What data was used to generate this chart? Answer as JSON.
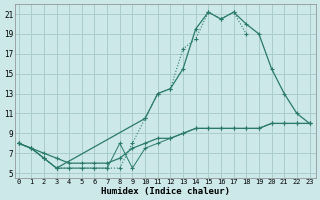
{
  "background_color": "#cce8e8",
  "grid_color": "#aacccc",
  "line_color": "#2a7a6a",
  "xlim": [
    -0.3,
    23.5
  ],
  "ylim": [
    4.5,
    22
  ],
  "xticks": [
    0,
    1,
    2,
    3,
    4,
    5,
    6,
    7,
    8,
    9,
    10,
    11,
    12,
    13,
    14,
    15,
    16,
    17,
    18,
    19,
    20,
    21,
    22,
    23
  ],
  "yticks": [
    5,
    7,
    9,
    11,
    13,
    15,
    17,
    19,
    21
  ],
  "xlabel": "Humidex (Indice chaleur)",
  "line1_x": [
    0,
    1,
    2,
    3,
    4,
    5,
    6,
    7,
    8,
    9,
    10,
    11,
    12,
    13,
    14,
    15,
    16,
    17,
    18
  ],
  "line1_y": [
    8.0,
    7.5,
    6.5,
    5.5,
    5.5,
    5.5,
    5.5,
    5.5,
    5.5,
    8.0,
    10.5,
    13.0,
    13.5,
    17.5,
    18.5,
    21.2,
    20.5,
    21.2,
    19.0
  ],
  "line2_x": [
    0,
    1,
    2,
    3,
    10,
    11,
    12,
    13,
    14,
    15,
    16,
    17,
    18,
    19,
    20,
    21,
    22,
    23
  ],
  "line2_y": [
    8.0,
    7.5,
    6.5,
    5.5,
    10.5,
    13.0,
    13.5,
    15.5,
    19.5,
    21.2,
    20.5,
    21.2,
    20.0,
    19.0,
    15.5,
    13.0,
    11.0,
    10.0
  ],
  "line3_x": [
    0,
    1,
    2,
    3,
    4,
    5,
    6,
    7,
    8,
    9,
    10,
    11,
    12,
    13,
    14,
    15,
    16,
    17,
    18,
    19,
    20,
    21,
    22,
    23
  ],
  "line3_y": [
    8.0,
    7.5,
    7.0,
    6.5,
    6.0,
    6.0,
    6.0,
    6.0,
    6.5,
    7.5,
    8.0,
    8.5,
    8.5,
    9.0,
    9.5,
    9.5,
    9.5,
    9.5,
    9.5,
    9.5,
    10.0,
    10.0,
    10.0,
    10.0
  ],
  "line4_x": [
    0,
    1,
    2,
    3,
    4,
    5,
    6,
    7,
    8,
    9,
    10,
    11,
    12,
    13,
    14,
    15,
    16,
    17,
    18,
    19,
    20,
    21,
    22,
    23
  ],
  "line4_y": [
    8.0,
    7.5,
    6.5,
    5.5,
    5.5,
    5.5,
    5.5,
    5.5,
    8.0,
    5.5,
    7.5,
    8.0,
    8.5,
    9.0,
    9.5,
    9.5,
    9.5,
    9.5,
    9.5,
    9.5,
    10.0,
    10.0,
    10.0,
    10.0
  ]
}
